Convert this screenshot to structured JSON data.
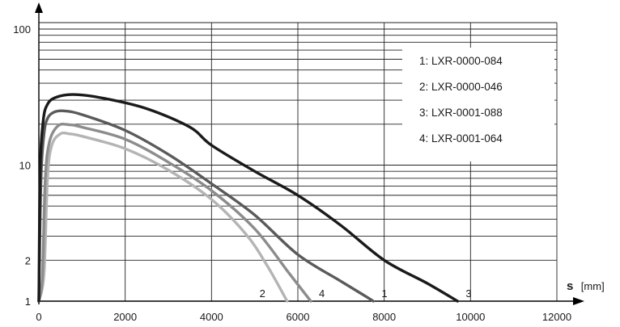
{
  "chart_data": {
    "type": "line",
    "x_axis": {
      "label_symbol": "s",
      "label_unit": "[mm]",
      "ticks": [
        0,
        2000,
        4000,
        6000,
        8000,
        10000,
        12000
      ],
      "range": [
        0,
        12000
      ]
    },
    "y_axis": {
      "scale": "log",
      "ticks": [
        1,
        2,
        10,
        100
      ],
      "range": [
        1,
        100
      ]
    },
    "grid": true,
    "legend_position": "top-right",
    "legend": [
      "1: LXR-0000-084",
      "2: LXR-0000-046",
      "3: LXR-0001-088",
      "4: LXR-0001-064"
    ],
    "series": [
      {
        "name": "1: LXR-0000-084",
        "end_label": "1",
        "color": "#5a5a5a",
        "points": [
          [
            0,
            1
          ],
          [
            50,
            8
          ],
          [
            120,
            17
          ],
          [
            200,
            22
          ],
          [
            350,
            24.5
          ],
          [
            600,
            25
          ],
          [
            1000,
            23.5
          ],
          [
            2000,
            18
          ],
          [
            3000,
            12
          ],
          [
            4000,
            7.3
          ],
          [
            5000,
            4.3
          ],
          [
            6000,
            2.2
          ],
          [
            7000,
            1.4
          ],
          [
            7500,
            1.12
          ],
          [
            7750,
            1
          ]
        ]
      },
      {
        "name": "2: LXR-0000-046",
        "end_label": "2",
        "color": "#b4b4b4",
        "points": [
          [
            0,
            1
          ],
          [
            120,
            1.6
          ],
          [
            200,
            8
          ],
          [
            300,
            14
          ],
          [
            500,
            17
          ],
          [
            700,
            17
          ],
          [
            1000,
            16.3
          ],
          [
            2000,
            13.2
          ],
          [
            3000,
            9.2
          ],
          [
            4000,
            5.6
          ],
          [
            4800,
            3.1
          ],
          [
            5300,
            1.8
          ],
          [
            5750,
            1
          ]
        ]
      },
      {
        "name": "3: LXR-0001-088",
        "end_label": "3",
        "color": "#1a1a1a",
        "points": [
          [
            0,
            1
          ],
          [
            30,
            9
          ],
          [
            100,
            21
          ],
          [
            200,
            28
          ],
          [
            400,
            31.5
          ],
          [
            800,
            33
          ],
          [
            1500,
            31
          ],
          [
            2500,
            26
          ],
          [
            3500,
            19
          ],
          [
            4000,
            14
          ],
          [
            5000,
            9
          ],
          [
            6000,
            6
          ],
          [
            7000,
            3.6
          ],
          [
            8000,
            2
          ],
          [
            9000,
            1.35
          ],
          [
            9700,
            1
          ]
        ]
      },
      {
        "name": "4: LXR-0001-064",
        "end_label": "4",
        "color": "#8c8c8c",
        "points": [
          [
            0,
            1
          ],
          [
            80,
            1.5
          ],
          [
            150,
            8
          ],
          [
            250,
            15
          ],
          [
            450,
            19.5
          ],
          [
            700,
            19.8
          ],
          [
            1000,
            19
          ],
          [
            2000,
            15.5
          ],
          [
            3000,
            10.5
          ],
          [
            4000,
            6.5
          ],
          [
            5000,
            3.4
          ],
          [
            5800,
            1.6
          ],
          [
            6300,
            1
          ]
        ]
      }
    ]
  }
}
